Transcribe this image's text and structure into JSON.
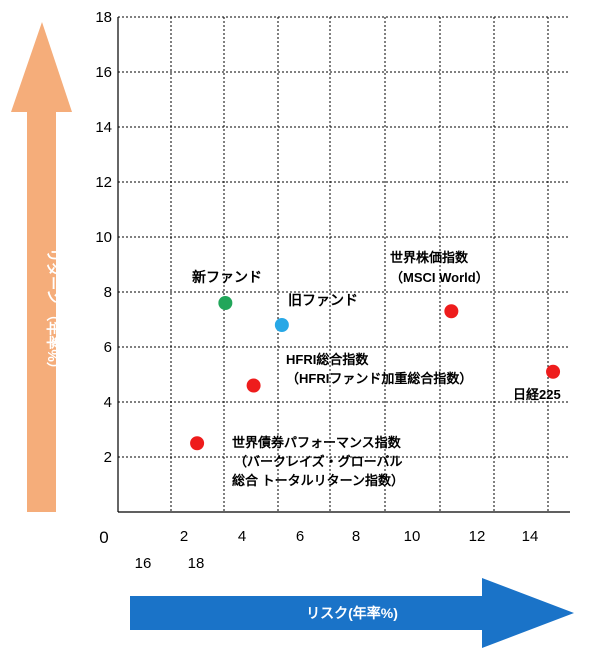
{
  "colors": {
    "return_arrow": "#f5ad7a",
    "risk_arrow": "#1a73c8",
    "point_red": "#ee1c1c",
    "point_green": "#21a65a",
    "point_blue": "#28a8e6"
  },
  "chart_data": {
    "type": "scatter",
    "title": "",
    "xlabel": "リスク(年率%)",
    "ylabel": "リターン （年率%）",
    "origin_label": "0",
    "ylim": [
      0,
      18
    ],
    "y_ticks": [
      "2",
      "4",
      "6",
      "8",
      "10",
      "12",
      "14",
      "16",
      "18"
    ],
    "x_tick_labels": [
      "2",
      "4",
      "6",
      "8",
      "10",
      "12",
      "14"
    ],
    "x_tick_labels_row2": [
      "16",
      "18"
    ],
    "grid": true,
    "points": [
      {
        "label": "新ファンド",
        "x": 3.8,
        "y": 7.6,
        "color": "#21a65a"
      },
      {
        "label": "旧ファンド",
        "x": 5.8,
        "y": 6.8,
        "color": "#28a8e6"
      },
      {
        "label": "世界株価指数",
        "label2": "（MSCI World）",
        "x": 11.8,
        "y": 7.3,
        "color": "#ee1c1c"
      },
      {
        "label": "HFRI総合指数",
        "label2": "（HFRIファンド加重総合指数）",
        "x": 4.8,
        "y": 4.6,
        "color": "#ee1c1c"
      },
      {
        "label": "日経225",
        "x": 15.4,
        "y": 5.1,
        "color": "#ee1c1c"
      },
      {
        "label": "世界債券パフォーマンス指数",
        "label2": "（バークレイズ・グローバル",
        "label3": "総合 トータルリターン指数）",
        "x": 2.8,
        "y": 2.5,
        "color": "#ee1c1c"
      }
    ]
  }
}
